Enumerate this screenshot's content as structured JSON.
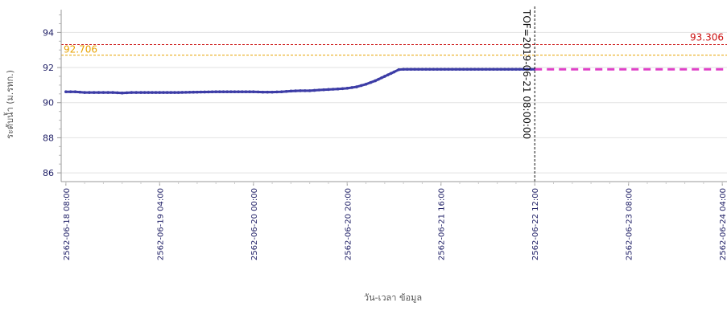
{
  "chart_data": {
    "type": "line",
    "xlabel": "วัน-เวลา ข้อมูล",
    "ylabel": "ระดับน้ำ (ม.รทก.)",
    "ylim": [
      85.5,
      95.3
    ],
    "xlim": [
      "2562-06-18 07:00",
      "2562-06-24 05:00"
    ],
    "yticks": [
      86,
      88,
      90,
      92,
      94
    ],
    "xticks": [
      {
        "value": "2562-06-18 08:00",
        "label": "2562-06-18 08:00"
      },
      {
        "value": "2562-06-19 04:00",
        "label": "2562-06-19 04:00"
      },
      {
        "value": "2562-06-20 00:00",
        "label": "2562-06-20 00:00"
      },
      {
        "value": "2562-06-20 20:00",
        "label": "2562-06-20 20:00"
      },
      {
        "value": "2562-06-21 16:00",
        "label": "2562-06-21 16:00"
      },
      {
        "value": "2562-06-22 12:00",
        "label": "2562-06-22 12:00"
      },
      {
        "value": "2562-06-23 08:00",
        "label": "2562-06-23 08:00"
      },
      {
        "value": "2562-06-24 04:00",
        "label": "2562-06-24 04:00"
      }
    ],
    "grid": "horizontal",
    "series": [
      {
        "style": "solid-markers",
        "color": "#3c3ca6",
        "points": [
          [
            "2562-06-18 08:00",
            90.62
          ],
          [
            "2562-06-18 10:00",
            90.62
          ],
          [
            "2562-06-18 12:00",
            90.58
          ],
          [
            "2562-06-18 14:00",
            90.58
          ],
          [
            "2562-06-18 16:00",
            90.58
          ],
          [
            "2562-06-18 18:00",
            90.58
          ],
          [
            "2562-06-18 20:00",
            90.55
          ],
          [
            "2562-06-18 22:00",
            90.58
          ],
          [
            "2562-06-19 00:00",
            90.58
          ],
          [
            "2562-06-19 04:00",
            90.58
          ],
          [
            "2562-06-19 08:00",
            90.58
          ],
          [
            "2562-06-19 12:00",
            90.6
          ],
          [
            "2562-06-19 16:00",
            90.62
          ],
          [
            "2562-06-19 20:00",
            90.62
          ],
          [
            "2562-06-20 00:00",
            90.62
          ],
          [
            "2562-06-20 02:00",
            90.6
          ],
          [
            "2562-06-20 04:00",
            90.6
          ],
          [
            "2562-06-20 06:00",
            90.62
          ],
          [
            "2562-06-20 08:00",
            90.66
          ],
          [
            "2562-06-20 10:00",
            90.68
          ],
          [
            "2562-06-20 12:00",
            90.68
          ],
          [
            "2562-06-20 14:00",
            90.72
          ],
          [
            "2562-06-20 16:00",
            90.75
          ],
          [
            "2562-06-20 18:00",
            90.78
          ],
          [
            "2562-06-20 20:00",
            90.82
          ],
          [
            "2562-06-20 22:00",
            90.9
          ],
          [
            "2562-06-21 00:00",
            91.05
          ],
          [
            "2562-06-21 02:00",
            91.25
          ],
          [
            "2562-06-21 04:00",
            91.5
          ],
          [
            "2562-06-21 06:00",
            91.75
          ],
          [
            "2562-06-21 07:00",
            91.88
          ],
          [
            "2562-06-21 08:00",
            91.9
          ],
          [
            "2562-06-21 12:00",
            91.9
          ],
          [
            "2562-06-21 16:00",
            91.9
          ],
          [
            "2562-06-21 20:00",
            91.9
          ],
          [
            "2562-06-22 00:00",
            91.9
          ],
          [
            "2562-06-22 04:00",
            91.9
          ],
          [
            "2562-06-22 08:00",
            91.9
          ],
          [
            "2562-06-22 12:00",
            91.9
          ]
        ]
      },
      {
        "style": "dashed",
        "color": "#e040c8",
        "points": [
          [
            "2562-06-22 12:00",
            91.9
          ],
          [
            "2562-06-24 05:00",
            91.9
          ]
        ]
      }
    ],
    "reference_lines": [
      {
        "value": 93.306,
        "label": "93.306",
        "color": "#cc1111",
        "label_side": "right"
      },
      {
        "value": 92.706,
        "label": "92.706",
        "color": "#e8a200",
        "label_side": "left"
      }
    ],
    "vertical_marker": {
      "value": "2562-06-22 12:00",
      "label": "TOF=2019-06-21 08:00:00"
    }
  }
}
